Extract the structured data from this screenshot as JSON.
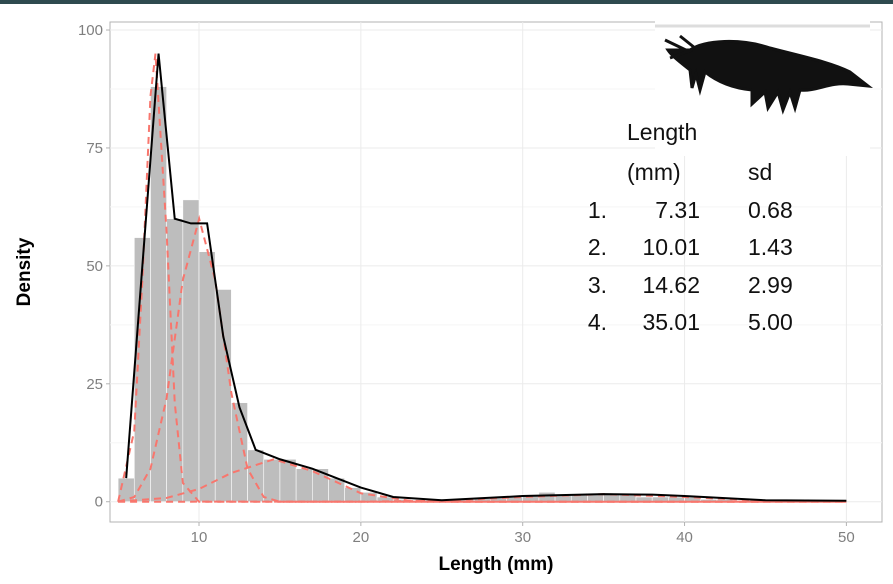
{
  "chart_data": {
    "type": "histogram",
    "x_label": "Length (mm)",
    "y_label": "Density",
    "xlim": [
      4.5,
      52.2
    ],
    "ylim": [
      -4.3,
      101.7
    ],
    "xticks": [
      10,
      20,
      30,
      40,
      50
    ],
    "yticks": [
      0,
      25,
      50,
      75,
      100
    ],
    "grid": true,
    "bins": [
      5,
      6,
      7,
      8,
      9,
      10,
      11,
      12,
      13,
      14,
      15,
      16,
      17,
      18,
      19,
      20,
      21,
      22,
      23,
      24,
      25,
      26,
      27,
      28,
      29,
      30,
      31,
      32,
      33,
      34,
      35,
      36,
      37,
      38,
      39,
      40,
      41,
      42,
      43,
      44,
      45
    ],
    "values": [
      5,
      56,
      88,
      60,
      64,
      53,
      45,
      21,
      11,
      9,
      9,
      7,
      7,
      5,
      3,
      2,
      1,
      0.5,
      0.3,
      0.3,
      0.5,
      0.5,
      0.7,
      1,
      1,
      1.5,
      2,
      1.5,
      1.5,
      1.5,
      1.5,
      1.5,
      1,
      1,
      1,
      1,
      0.5,
      0.5,
      0.3,
      0.3
    ],
    "color": "#bdbdbd",
    "fit": {
      "color": "#000000",
      "x": [
        5.5,
        7.5,
        8.5,
        9.5,
        10.5,
        11.5,
        12.5,
        13.5,
        15,
        17,
        20,
        22,
        25,
        30,
        35,
        38,
        40,
        45,
        50
      ],
      "values": [
        5,
        95,
        60,
        59,
        59,
        35,
        20,
        11,
        9,
        7,
        3,
        1,
        0.3,
        1.2,
        1.6,
        1.5,
        1.2,
        0.3,
        0.2
      ]
    },
    "components": [
      {
        "color": "#f8766d",
        "x": [
          5,
          6,
          6.5,
          7,
          7.31,
          8,
          8.5,
          9,
          10,
          50
        ],
        "values": [
          0,
          15,
          47,
          86,
          95,
          57,
          21,
          4,
          0,
          0
        ]
      },
      {
        "color": "#f8766d",
        "x": [
          5,
          6,
          7,
          8,
          9,
          10.01,
          11,
          12,
          13,
          14,
          15,
          50
        ],
        "values": [
          0,
          1,
          7,
          22,
          47,
          60,
          47,
          23,
          7,
          1,
          0,
          0
        ]
      },
      {
        "color": "#f8766d",
        "x": [
          5,
          8,
          10,
          12,
          14.62,
          17,
          20,
          23,
          26,
          50
        ],
        "values": [
          0.05,
          0.8,
          2.7,
          6.1,
          9,
          6.5,
          1.8,
          0.2,
          0,
          0
        ]
      },
      {
        "color": "#f8766d",
        "x": [
          5,
          20,
          25,
          30,
          35.01,
          40,
          45,
          50
        ],
        "values": [
          0,
          0.02,
          0.2,
          1,
          1.6,
          1,
          0.2,
          0.02
        ]
      }
    ],
    "annotation": {
      "header": [
        "Length",
        "(mm)",
        "sd"
      ],
      "rows": [
        [
          "1.",
          "7.31",
          "0.68"
        ],
        [
          "2.",
          "10.01",
          "1.43"
        ],
        [
          "3.",
          "14.62",
          "2.99"
        ],
        [
          "4.",
          "35.01",
          "5.00"
        ]
      ]
    }
  }
}
